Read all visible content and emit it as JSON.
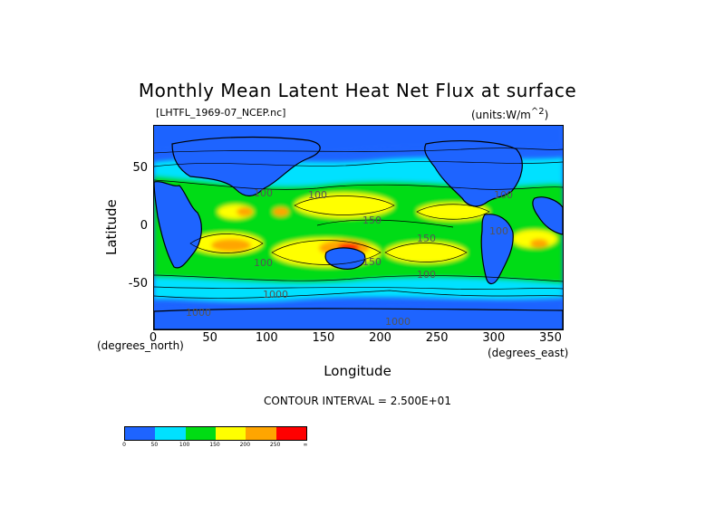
{
  "chart_data": {
    "type": "heatmap",
    "title": "Monthly Mean Latent Heat Net Flux at surface",
    "file_label": "[LHTFL_1969-07_NCEP.nc]",
    "units_label": "(units:W/m^2)",
    "xlabel": "Longitude",
    "ylabel": "Latitude",
    "x_unit": "(degrees_east)",
    "y_unit": "(degrees_north)",
    "xlim": [
      0,
      360
    ],
    "ylim": [
      -90,
      90
    ],
    "x_ticks": [
      "0",
      "50",
      "100",
      "150",
      "200",
      "250",
      "300",
      "350"
    ],
    "y_ticks": [
      "50",
      "0",
      "-50"
    ],
    "contour_interval": "CONTOUR INTERVAL = 2.500E+01",
    "colorbar": {
      "colors": [
        "#1e64ff",
        "#00e1ff",
        "#00dc14",
        "#ffff00",
        "#ffa500",
        "#ff0000"
      ],
      "levels": [
        "0",
        "50",
        "100",
        "150",
        "200",
        "250",
        "∞"
      ]
    },
    "contour_labels": [
      "100",
      "100",
      "150",
      "150",
      "150",
      "100",
      "100",
      "100",
      "100",
      "1000",
      "1000",
      "1000"
    ]
  }
}
